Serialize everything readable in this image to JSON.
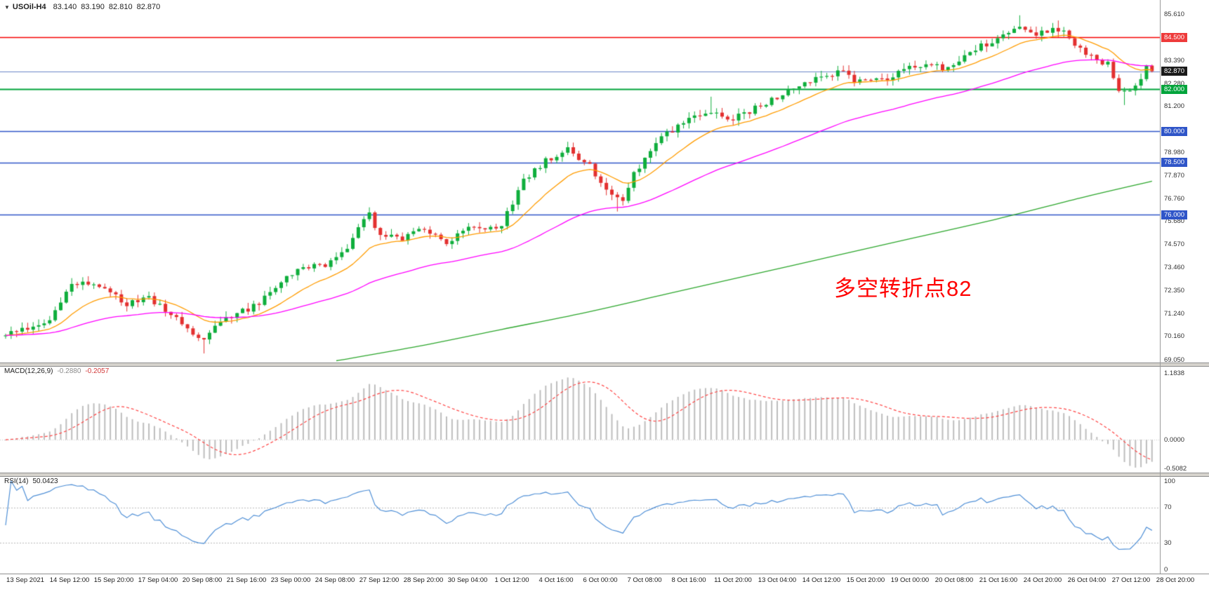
{
  "header": {
    "collapse_icon": "▼",
    "symbol_period": "USOil-H4",
    "open": "83.140",
    "high": "83.190",
    "low": "82.810",
    "close": "82.870"
  },
  "annotation": {
    "text": "多空转折点82",
    "color": "#ff0000"
  },
  "indicators": {
    "macd": {
      "label": "MACD(12,26,9)",
      "value_main": "-0.2880",
      "value_signal": "-0.2057",
      "axis_labels": [
        "1.1838",
        "0.0000",
        "-0.5082"
      ]
    },
    "rsi": {
      "label": "RSI(14)",
      "value": "50.0423",
      "axis_labels": [
        "100",
        "70",
        "30",
        "0"
      ]
    }
  },
  "time_axis": {
    "labels": [
      "13 Sep 2021",
      "14 Sep 12:00",
      "15 Sep 20:00",
      "17 Sep 04:00",
      "20 Sep 08:00",
      "21 Sep 16:00",
      "23 Sep 00:00",
      "24 Sep 08:00",
      "27 Sep 12:00",
      "28 Sep 20:00",
      "30 Sep 04:00",
      "1 Oct 12:00",
      "4 Oct 16:00",
      "6 Oct 00:00",
      "7 Oct 08:00",
      "8 Oct 16:00",
      "11 Oct 20:00",
      "13 Oct 04:00",
      "14 Oct 12:00",
      "15 Oct 20:00",
      "19 Oct 00:00",
      "20 Oct 08:00",
      "21 Oct 16:00",
      "24 Oct 20:00",
      "26 Oct 04:00",
      "27 Oct 12:00",
      "28 Oct 20:00"
    ]
  },
  "price_scale": {
    "ticks": [
      {
        "label": "85.610",
        "price": 85.61
      },
      {
        "label": "83.390",
        "price": 83.39
      },
      {
        "label": "82.280",
        "price": 82.28
      },
      {
        "label": "81.200",
        "price": 81.2
      },
      {
        "label": "78.980",
        "price": 78.98
      },
      {
        "label": "77.870",
        "price": 77.87
      },
      {
        "label": "76.760",
        "price": 76.76
      },
      {
        "label": "75.680",
        "price": 75.68
      },
      {
        "label": "74.570",
        "price": 74.57
      },
      {
        "label": "73.460",
        "price": 73.46
      },
      {
        "label": "72.350",
        "price": 72.35
      },
      {
        "label": "71.240",
        "price": 71.24
      },
      {
        "label": "70.160",
        "price": 70.16
      },
      {
        "label": "69.050",
        "price": 69.05
      }
    ],
    "badges": [
      {
        "label": "84.500",
        "price": 84.5,
        "color": "#ee3b3b"
      },
      {
        "label": "82.870",
        "price": 82.87,
        "color": "#1a1a1a"
      },
      {
        "label": "82.000",
        "price": 82.0,
        "color": "#00a43b"
      },
      {
        "label": "80.000",
        "price": 80.0,
        "color": "#2f55c8"
      },
      {
        "label": "78.500",
        "price": 78.5,
        "color": "#2f55c8"
      },
      {
        "label": "76.000",
        "price": 76.0,
        "color": "#2f55c8"
      }
    ]
  },
  "chart_data": {
    "type": "candlestick",
    "symbol": "USOil",
    "timeframe": "H4",
    "last_bar": {
      "open": 83.14,
      "high": 83.19,
      "low": 82.81,
      "close": 82.87
    },
    "num_bars": 209,
    "price_range": [
      69.05,
      85.61
    ],
    "up_color": "#0fae3c",
    "down_color": "#e33030",
    "close_path": [
      [
        0,
        70.2
      ],
      [
        4,
        70.6
      ],
      [
        8,
        71.0
      ],
      [
        12,
        72.6
      ],
      [
        14,
        72.8
      ],
      [
        18,
        72.4
      ],
      [
        22,
        71.7
      ],
      [
        26,
        72.0
      ],
      [
        30,
        71.3
      ],
      [
        34,
        70.3
      ],
      [
        36,
        70.0
      ],
      [
        38,
        70.8
      ],
      [
        42,
        71.2
      ],
      [
        46,
        71.8
      ],
      [
        50,
        72.8
      ],
      [
        54,
        73.4
      ],
      [
        58,
        73.6
      ],
      [
        62,
        74.5
      ],
      [
        64,
        75.4
      ],
      [
        66,
        76.0
      ],
      [
        68,
        75.0
      ],
      [
        72,
        74.9
      ],
      [
        76,
        75.3
      ],
      [
        80,
        74.7
      ],
      [
        84,
        75.4
      ],
      [
        88,
        75.3
      ],
      [
        90,
        75.6
      ],
      [
        94,
        77.6
      ],
      [
        98,
        78.6
      ],
      [
        102,
        79.2
      ],
      [
        106,
        78.3
      ],
      [
        110,
        77.0
      ],
      [
        112,
        76.7
      ],
      [
        114,
        78.0
      ],
      [
        118,
        79.4
      ],
      [
        120,
        79.9
      ],
      [
        124,
        80.6
      ],
      [
        128,
        80.9
      ],
      [
        132,
        80.6
      ],
      [
        136,
        81.1
      ],
      [
        140,
        81.6
      ],
      [
        144,
        82.2
      ],
      [
        148,
        82.6
      ],
      [
        152,
        82.9
      ],
      [
        154,
        82.3
      ],
      [
        158,
        82.6
      ],
      [
        160,
        82.5
      ],
      [
        164,
        83.1
      ],
      [
        168,
        83.3
      ],
      [
        170,
        82.9
      ],
      [
        174,
        83.6
      ],
      [
        178,
        84.2
      ],
      [
        182,
        84.8
      ],
      [
        184,
        85.1
      ],
      [
        186,
        84.6
      ],
      [
        190,
        84.9
      ],
      [
        192,
        84.7
      ],
      [
        194,
        84.2
      ],
      [
        198,
        83.4
      ],
      [
        200,
        83.2
      ],
      [
        202,
        81.9
      ],
      [
        204,
        81.8
      ],
      [
        206,
        82.5
      ],
      [
        207,
        83.14
      ],
      [
        208,
        82.87
      ]
    ],
    "wick_extremes": {
      "highs": [
        [
          15,
          73.05
        ],
        [
          66,
          76.35
        ],
        [
          128,
          81.65
        ],
        [
          184,
          85.55
        ],
        [
          191,
          85.3
        ]
      ],
      "lows": [
        [
          36,
          69.35
        ],
        [
          111,
          76.15
        ],
        [
          203,
          81.25
        ]
      ]
    },
    "levels": [
      {
        "price": 84.5,
        "color": "#f60000",
        "width": 1.5,
        "role": "resistance"
      },
      {
        "price": 82.87,
        "color": "#6b85c8",
        "width": 1,
        "role": "current-price"
      },
      {
        "price": 82.0,
        "color": "#00a43b",
        "width": 2,
        "role": "pivot"
      },
      {
        "price": 80.0,
        "color": "#2f55c8",
        "width": 1.5,
        "role": "support"
      },
      {
        "price": 78.5,
        "color": "#2f55c8",
        "width": 1.5,
        "role": "support"
      },
      {
        "price": 76.0,
        "color": "#2f55c8",
        "width": 1.5,
        "role": "support"
      }
    ],
    "moving_averages": [
      {
        "name": "fast",
        "type": "ema",
        "period": 14,
        "color": "#ff9c00"
      },
      {
        "name": "medium",
        "type": "ema",
        "period": 50,
        "color": "#ff00ff"
      },
      {
        "name": "slow",
        "type": "waypoints",
        "color": "#2ca62c",
        "points": [
          [
            60,
            69.0
          ],
          [
            75,
            69.7
          ],
          [
            90,
            70.5
          ],
          [
            105,
            71.3
          ],
          [
            120,
            72.2
          ],
          [
            135,
            73.1
          ],
          [
            150,
            74.0
          ],
          [
            165,
            74.9
          ],
          [
            180,
            75.8
          ],
          [
            195,
            76.8
          ],
          [
            208,
            77.6
          ]
        ]
      }
    ],
    "macd": {
      "fast": 12,
      "slow": 26,
      "signal": 9,
      "ylim": [
        -0.5082,
        1.1838
      ],
      "hist_color": "#bdbdbd",
      "signal_color": "#ff4444"
    },
    "rsi": {
      "period": 14,
      "ylim": [
        0,
        100
      ],
      "levels": [
        70,
        30
      ],
      "color": "#4f8fd6"
    }
  }
}
